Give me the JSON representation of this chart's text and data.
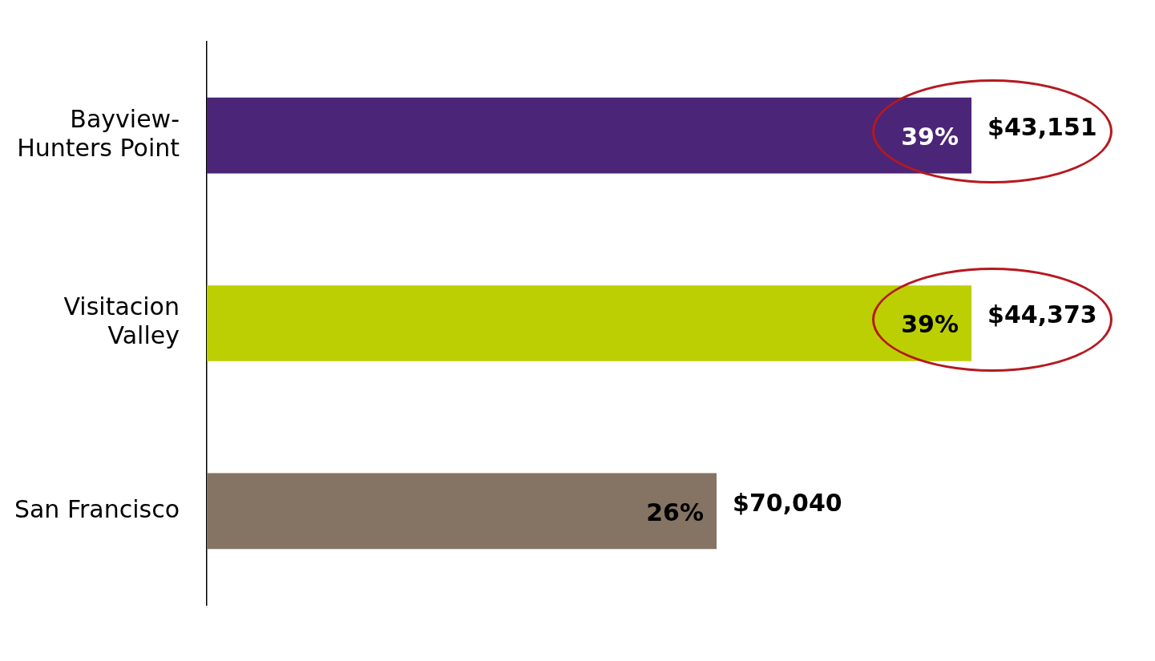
{
  "chart_data": {
    "type": "bar",
    "orientation": "horizontal",
    "categories": [
      "Bayview-Hunters Point",
      "Visitacion Valley",
      "San Francisco"
    ],
    "values": [
      39,
      39,
      26
    ],
    "colors": [
      "#4b2577",
      "#bccf02",
      "#857463"
    ],
    "value_labels": [
      "39%",
      "39%",
      "26%"
    ],
    "annotations": [
      "$43,151",
      "$44,373",
      "$70,040"
    ],
    "grid": false,
    "legend": false
  }
}
